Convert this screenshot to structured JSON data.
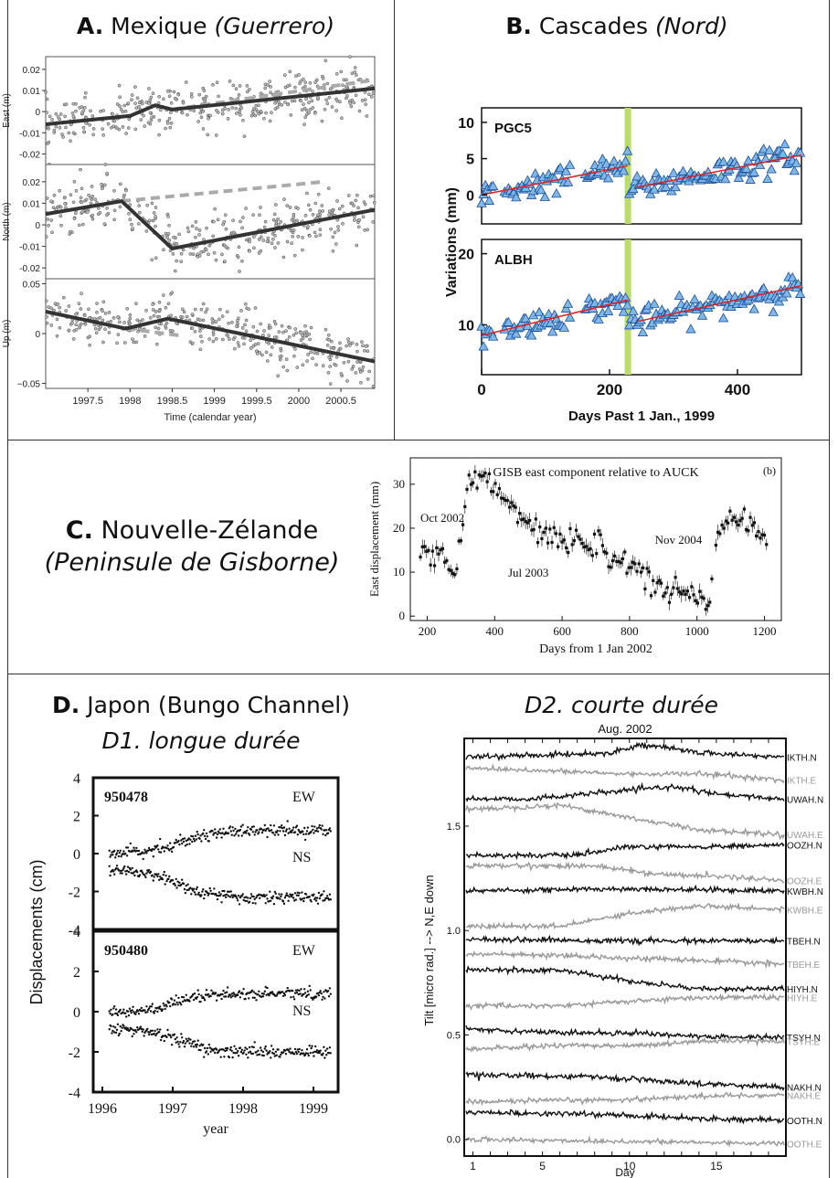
{
  "panels": {
    "A": {
      "letter": "A.",
      "name": "Mexique",
      "region": "(Guerrero)"
    },
    "B": {
      "letter": "B.",
      "name": "Cascades",
      "region": "(Nord)"
    },
    "C": {
      "letter": "C.",
      "name": "Nouvelle-Zélande",
      "region": "(Peninsule de Gisborne)"
    },
    "D": {
      "letter": "D.",
      "name": "Japon (Bungo Channel)",
      "sub1": "D1. longue durée",
      "sub2": "D2. courte durée"
    }
  },
  "chart_data": [
    {
      "id": "A",
      "type": "scatter",
      "xlabel": "Time (calendar year)",
      "xticks": [
        "1997.5",
        "1998",
        "1998.5",
        "1999",
        "1999.5",
        "2000",
        "2000.5"
      ],
      "xlim": [
        1997.0,
        2000.9
      ],
      "subplots": [
        {
          "ylabel": "East (m)",
          "ylim": [
            -0.025,
            0.026
          ],
          "yticks": [
            "0.02",
            "0.01",
            "0",
            "-0.01",
            "-0.02"
          ],
          "ytick_values": [
            0.02,
            0.01,
            0,
            -0.01,
            -0.02
          ],
          "trend": [
            [
              1997.0,
              -0.006
            ],
            [
              1998.0,
              -0.002
            ],
            [
              1998.3,
              0.003
            ],
            [
              1998.5,
              0.001
            ],
            [
              2000.9,
              0.011
            ]
          ],
          "model": [
            [
              1998.5,
              0.001
            ],
            [
              2000.9,
              0.015
            ]
          ]
        },
        {
          "ylabel": "North (m)",
          "ylim": [
            -0.025,
            0.028
          ],
          "yticks": [
            "0.02",
            "0.01",
            "0",
            "-0.01",
            "-0.02"
          ],
          "ytick_values": [
            0.02,
            0.01,
            0,
            -0.01,
            -0.02
          ],
          "trend": [
            [
              1997.0,
              0.005
            ],
            [
              1997.9,
              0.011
            ],
            [
              1998.5,
              -0.011
            ],
            [
              2000.9,
              0.007
            ]
          ],
          "model": [
            [
              1997.9,
              0.011
            ],
            [
              2000.3,
              0.02
            ]
          ]
        },
        {
          "ylabel": "Up (m)",
          "ylim": [
            -0.055,
            0.055
          ],
          "yticks": [
            "0.05",
            "0",
            "−0.05"
          ],
          "ytick_values": [
            0.05,
            0,
            -0.05
          ],
          "trend": [
            [
              1997.0,
              0.022
            ],
            [
              1997.95,
              0.005
            ],
            [
              1998.45,
              0.015
            ],
            [
              2000.9,
              -0.028
            ]
          ],
          "model": [
            [
              1997.95,
              0.005
            ],
            [
              1998.6,
              -0.002
            ]
          ]
        }
      ]
    },
    {
      "id": "B",
      "type": "scatter",
      "xlabel": "Days Past 1 Jan., 1999",
      "ylabel": "Variations (mm)",
      "xticks": [
        "0",
        "200",
        "400"
      ],
      "xtick_values": [
        0,
        200,
        400
      ],
      "xlim": [
        0,
        500
      ],
      "event_day": 228,
      "subplots": [
        {
          "station": "PGC5",
          "ylim": [
            -4,
            12
          ],
          "yticks": [
            "10",
            "5",
            "0"
          ],
          "ytick_values": [
            10,
            5,
            0
          ],
          "trend": [
            [
              0,
              0
            ],
            [
              228,
              4
            ]
          ],
          "trend2": [
            [
              240,
              1
            ],
            [
              500,
              5.5
            ]
          ]
        },
        {
          "station": "ALBH",
          "ylim": [
            3,
            22
          ],
          "yticks": [
            "20",
            "10"
          ],
          "ytick_values": [
            20,
            10
          ],
          "trend": [
            [
              0,
              8.5
            ],
            [
              228,
              13.5
            ]
          ],
          "trend2": [
            [
              245,
              10.5
            ],
            [
              500,
              15.5
            ]
          ]
        }
      ]
    },
    {
      "id": "C",
      "type": "scatter",
      "title": "GISB east component relative to AUCK",
      "tag": "(b)",
      "xlabel": "Days from 1 Jan 2002",
      "ylabel": "East displacement (mm)",
      "xticks": [
        "200",
        "400",
        "600",
        "800",
        "1000",
        "1200"
      ],
      "xtick_values": [
        200,
        400,
        600,
        800,
        1000,
        1200
      ],
      "yticks": [
        "0",
        "10",
        "20",
        "30"
      ],
      "ytick_values": [
        0,
        10,
        20,
        30
      ],
      "xlim": [
        150,
        1250
      ],
      "ylim": [
        -1,
        36
      ],
      "annotations": [
        {
          "text": "Oct 2002",
          "x": 245,
          "y": 21.5
        },
        {
          "text": "Jul 2003",
          "x": 500,
          "y": 9
        },
        {
          "text": "Nov 2004",
          "x": 945,
          "y": 16.5
        }
      ],
      "segments": [
        [
          180,
          16
        ],
        [
          220,
          13
        ],
        [
          260,
          12
        ],
        [
          285,
          9
        ],
        [
          300,
          18
        ],
        [
          320,
          30
        ],
        [
          350,
          32
        ],
        [
          400,
          29
        ],
        [
          450,
          25
        ],
        [
          500,
          20
        ],
        [
          540,
          18
        ],
        [
          600,
          18
        ],
        [
          650,
          17
        ],
        [
          700,
          17
        ],
        [
          750,
          14
        ],
        [
          800,
          11
        ],
        [
          850,
          9
        ],
        [
          900,
          6
        ],
        [
          950,
          5
        ],
        [
          1000,
          5
        ],
        [
          1040,
          5
        ],
        [
          1060,
          16
        ],
        [
          1080,
          22
        ],
        [
          1120,
          23
        ],
        [
          1160,
          21
        ],
        [
          1210,
          16
        ]
      ]
    },
    {
      "id": "D1",
      "type": "scatter",
      "xlabel": "year",
      "ylabel": "Displacements (cm)",
      "xticks": [
        "1996",
        "1997",
        "1998",
        "1999"
      ],
      "xtick_values": [
        1996,
        1997,
        1998,
        1999
      ],
      "xlim": [
        1996,
        1999.35
      ],
      "subplots": [
        {
          "station": "950478",
          "label_ew": "EW",
          "label_ns": "NS",
          "ylim": [
            -4,
            4
          ],
          "yticks": [
            "4",
            "2",
            "0",
            "-2",
            "-4"
          ],
          "ytick_values": [
            4,
            2,
            0,
            -2,
            -4
          ],
          "ew": {
            "start": 0,
            "end": 1.2
          },
          "ns": {
            "start": -0.9,
            "end": -2.3
          }
        },
        {
          "station": "950480",
          "label_ew": "EW",
          "label_ns": "NS",
          "ylim": [
            -4,
            4
          ],
          "yticks": [
            "4",
            "2",
            "0",
            "-2",
            "-4"
          ],
          "ytick_values": [
            4,
            2,
            0,
            -2,
            -4
          ],
          "ew": {
            "start": 0,
            "end": 0.9
          },
          "ns": {
            "start": -0.9,
            "end": -2.0
          }
        }
      ]
    },
    {
      "id": "D2",
      "type": "line",
      "title": "Aug. 2002",
      "xlabel": "Day",
      "ylabel": "Tilt [micro rad.] --> N,E down",
      "xticks": [
        "1",
        "5",
        "10",
        "15"
      ],
      "xtick_values": [
        1,
        5,
        10,
        15
      ],
      "xlim": [
        0.5,
        19
      ],
      "ylim": [
        -0.08,
        1.92
      ],
      "yticks": [
        "0.0",
        "0.5",
        "1.0",
        "1.5"
      ],
      "ytick_values": [
        0.0,
        0.5,
        1.0,
        1.5
      ],
      "series": [
        {
          "name": "IKTH.N",
          "color": "#111111",
          "level": 1.83,
          "shape": [
            [
              0,
              0
            ],
            [
              0.45,
              0.02
            ],
            [
              0.55,
              0.06
            ],
            [
              0.75,
              0.02
            ],
            [
              1,
              0.0
            ]
          ]
        },
        {
          "name": "IKTH.E",
          "color": "#999999",
          "level": 1.78,
          "shape": [
            [
              0,
              0.0
            ],
            [
              0.5,
              -0.03
            ],
            [
              0.75,
              -0.03
            ],
            [
              1,
              -0.06
            ]
          ]
        },
        {
          "name": "UWAH.N",
          "color": "#111111",
          "level": 1.63,
          "shape": [
            [
              0,
              0
            ],
            [
              0.2,
              0.0
            ],
            [
              0.5,
              0.04
            ],
            [
              0.65,
              0.06
            ],
            [
              0.8,
              0.02
            ],
            [
              1,
              0.0
            ]
          ]
        },
        {
          "name": "UWAH.E",
          "color": "#999999",
          "level": 1.58,
          "shape": [
            [
              0,
              0
            ],
            [
              0.3,
              0.02
            ],
            [
              0.55,
              -0.05
            ],
            [
              0.75,
              -0.1
            ],
            [
              1,
              -0.12
            ]
          ]
        },
        {
          "name": "OOZH.N",
          "color": "#111111",
          "level": 1.36,
          "shape": [
            [
              0,
              0
            ],
            [
              0.35,
              0.0
            ],
            [
              0.5,
              0.04
            ],
            [
              0.75,
              0.04
            ],
            [
              1,
              0.05
            ]
          ]
        },
        {
          "name": "OOZH.E",
          "color": "#999999",
          "level": 1.31,
          "shape": [
            [
              0,
              0
            ],
            [
              0.4,
              0.0
            ],
            [
              0.6,
              -0.04
            ],
            [
              0.8,
              -0.05
            ],
            [
              1,
              -0.07
            ]
          ]
        },
        {
          "name": "KWBH.N",
          "color": "#111111",
          "level": 1.19,
          "shape": [
            [
              0,
              0
            ],
            [
              0.5,
              0.01
            ],
            [
              1,
              0.0
            ]
          ]
        },
        {
          "name": "KWBH.E",
          "color": "#999999",
          "level": 1.02,
          "shape": [
            [
              0,
              0
            ],
            [
              0.3,
              0.0
            ],
            [
              0.5,
              0.06
            ],
            [
              0.75,
              0.1
            ],
            [
              1,
              0.08
            ]
          ]
        },
        {
          "name": "TBEH.N",
          "color": "#111111",
          "level": 0.96,
          "shape": [
            [
              0,
              0
            ],
            [
              0.5,
              -0.01
            ],
            [
              1,
              -0.01
            ]
          ]
        },
        {
          "name": "TBEH.E",
          "color": "#999999",
          "level": 0.89,
          "shape": [
            [
              0,
              0
            ],
            [
              0.5,
              -0.02
            ],
            [
              1,
              -0.05
            ]
          ]
        },
        {
          "name": "HIYH.N",
          "color": "#111111",
          "level": 0.81,
          "shape": [
            [
              0,
              0
            ],
            [
              0.3,
              0.0
            ],
            [
              0.55,
              -0.06
            ],
            [
              0.75,
              -0.09
            ],
            [
              1,
              -0.09
            ]
          ]
        },
        {
          "name": "HIYH.E",
          "color": "#999999",
          "level": 0.64,
          "shape": [
            [
              0,
              0
            ],
            [
              0.3,
              0.0
            ],
            [
              0.5,
              0.02
            ],
            [
              0.75,
              0.04
            ],
            [
              1,
              0.04
            ]
          ]
        },
        {
          "name": "TSYH.N",
          "color": "#111111",
          "level": 0.53,
          "shape": [
            [
              0,
              0
            ],
            [
              0.3,
              -0.02
            ],
            [
              0.55,
              -0.02
            ],
            [
              0.75,
              -0.04
            ],
            [
              1,
              -0.04
            ]
          ]
        },
        {
          "name": "TSYH.E",
          "color": "#999999",
          "level": 0.43,
          "shape": [
            [
              0,
              0
            ],
            [
              0.3,
              0.02
            ],
            [
              0.55,
              0.02
            ],
            [
              0.75,
              0.04
            ],
            [
              1,
              0.04
            ]
          ]
        },
        {
          "name": "NAKH.N",
          "color": "#111111",
          "level": 0.31,
          "shape": [
            [
              0,
              0
            ],
            [
              0.4,
              -0.01
            ],
            [
              0.7,
              -0.04
            ],
            [
              1,
              -0.06
            ]
          ]
        },
        {
          "name": "NAKH.E",
          "color": "#999999",
          "level": 0.18,
          "shape": [
            [
              0,
              0
            ],
            [
              0.5,
              0.01
            ],
            [
              0.8,
              0.03
            ],
            [
              1,
              0.03
            ]
          ]
        },
        {
          "name": "OOTH.N",
          "color": "#111111",
          "level": 0.13,
          "shape": [
            [
              0,
              0
            ],
            [
              0.4,
              -0.01
            ],
            [
              0.75,
              -0.03
            ],
            [
              1,
              -0.04
            ]
          ]
        },
        {
          "name": "OOTH.E",
          "color": "#999999",
          "level": 0.0,
          "shape": [
            [
              0,
              0
            ],
            [
              1,
              -0.02
            ]
          ]
        }
      ]
    }
  ]
}
